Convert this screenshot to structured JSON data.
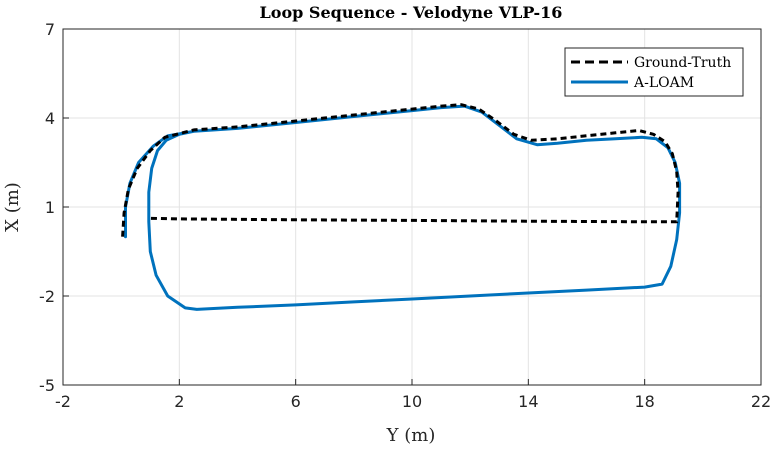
{
  "chart_data": {
    "type": "line",
    "title": "Loop Sequence - Velodyne VLP-16",
    "xlabel": "Y (m)",
    "ylabel": "X (m)",
    "xlim": [
      -2,
      22
    ],
    "ylim": [
      -5,
      7
    ],
    "xticks": [
      "-2",
      "2",
      "6",
      "10",
      "14",
      "18",
      "22"
    ],
    "yticks": [
      "-5",
      "-2",
      "1",
      "4",
      "7"
    ],
    "grid": true,
    "legend_position": "top-right",
    "series": [
      {
        "name": "Ground-Truth",
        "style": "dashed",
        "color": "#000000",
        "x": [
          0.05,
          0.1,
          0.25,
          0.55,
          1.0,
          1.5,
          2.5,
          4.0,
          6.0,
          8.0,
          10.0,
          11.0,
          11.7,
          12.3,
          12.9,
          13.5,
          14.1,
          15.0,
          16.0,
          17.0,
          17.8,
          18.3,
          18.7,
          18.95,
          19.1,
          19.15,
          19.1,
          18.0,
          14.0,
          10.0,
          6.0,
          2.0,
          1.0
        ],
        "y": [
          0.0,
          0.8,
          1.6,
          2.3,
          2.9,
          3.35,
          3.6,
          3.7,
          3.9,
          4.1,
          4.3,
          4.4,
          4.45,
          4.3,
          3.9,
          3.45,
          3.25,
          3.3,
          3.4,
          3.5,
          3.58,
          3.45,
          3.2,
          2.8,
          2.2,
          1.5,
          0.5,
          0.5,
          0.52,
          0.55,
          0.57,
          0.6,
          0.62
        ]
      },
      {
        "name": "A-LOAM",
        "style": "solid",
        "color": "#0072bd",
        "x": [
          0.15,
          0.15,
          0.3,
          0.6,
          1.1,
          1.6,
          2.5,
          4.0,
          6.0,
          8.0,
          10.0,
          11.0,
          11.8,
          12.4,
          13.0,
          13.6,
          14.3,
          15.0,
          16.0,
          17.0,
          17.9,
          18.4,
          18.8,
          19.05,
          19.2,
          19.2,
          19.1,
          18.9,
          18.6,
          18.0,
          16.0,
          14.0,
          12.0,
          10.0,
          8.0,
          6.0,
          4.0,
          2.6,
          2.2,
          1.6,
          1.2,
          1.0,
          0.95,
          0.95,
          1.05,
          1.25,
          1.55,
          2.0,
          2.5
        ],
        "y": [
          0.0,
          1.0,
          1.8,
          2.5,
          3.05,
          3.4,
          3.55,
          3.65,
          3.85,
          4.05,
          4.25,
          4.35,
          4.4,
          4.2,
          3.75,
          3.3,
          3.1,
          3.15,
          3.25,
          3.3,
          3.35,
          3.3,
          3.0,
          2.5,
          1.8,
          0.8,
          -0.1,
          -1.0,
          -1.6,
          -1.7,
          -1.8,
          -1.9,
          -2.0,
          -2.1,
          -2.2,
          -2.3,
          -2.38,
          -2.45,
          -2.4,
          -2.0,
          -1.3,
          -0.5,
          0.5,
          1.5,
          2.3,
          2.9,
          3.25,
          3.45,
          3.55
        ]
      }
    ]
  }
}
